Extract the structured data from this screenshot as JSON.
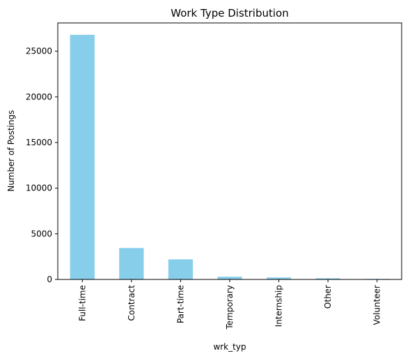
{
  "chart_data": {
    "type": "bar",
    "title": "Work Type Distribution",
    "xlabel": "wrk_typ",
    "ylabel": "Number of Postings",
    "categories": [
      "Full-time",
      "Contract",
      "Part-time",
      "Temporary",
      "Internship",
      "Other",
      "Volunteer"
    ],
    "values": [
      26800,
      3450,
      2200,
      300,
      220,
      130,
      60
    ],
    "ylim": [
      0,
      28100
    ],
    "yticks": [
      0,
      5000,
      10000,
      15000,
      20000,
      25000
    ],
    "bar_color": "#87ceeb",
    "grid": false,
    "legend": "none"
  }
}
